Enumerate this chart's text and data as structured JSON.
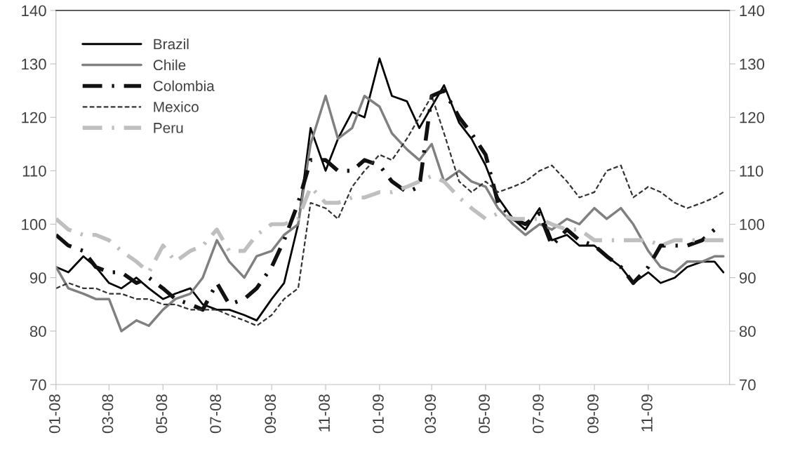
{
  "chart_data": {
    "type": "line",
    "x": [
      "2008-01-01",
      "2008-01-15",
      "2008-02-01",
      "2008-02-15",
      "2008-03-01",
      "2008-03-15",
      "2008-04-01",
      "2008-04-15",
      "2008-05-01",
      "2008-05-15",
      "2008-06-01",
      "2008-06-15",
      "2008-07-01",
      "2008-07-15",
      "2008-08-01",
      "2008-08-15",
      "2008-09-01",
      "2008-09-15",
      "2008-10-01",
      "2008-10-15",
      "2008-11-01",
      "2008-11-15",
      "2008-12-01",
      "2008-12-15",
      "2009-01-01",
      "2009-01-15",
      "2009-02-01",
      "2009-02-15",
      "2009-03-01",
      "2009-03-15",
      "2009-04-01",
      "2009-04-15",
      "2009-05-01",
      "2009-05-15",
      "2009-06-01",
      "2009-06-15",
      "2009-07-01",
      "2009-07-15",
      "2009-08-01",
      "2009-08-15",
      "2009-09-01",
      "2009-09-15",
      "2009-10-01",
      "2009-10-15",
      "2009-11-01",
      "2009-11-15",
      "2009-12-01",
      "2009-12-15",
      "2010-01-01",
      "2010-01-15",
      "2010-01-25"
    ],
    "series": [
      {
        "name": "Brazil",
        "color": "#000000",
        "line_style": "solid",
        "values": [
          92,
          91,
          94,
          92,
          89,
          88,
          90,
          88,
          86,
          87,
          88,
          85,
          84,
          84,
          83,
          82,
          86,
          89,
          100,
          118,
          110,
          116,
          121,
          120,
          131,
          124,
          123,
          118,
          122,
          126,
          119,
          116,
          111,
          105,
          101,
          99,
          103,
          97,
          98,
          96,
          96,
          94,
          92,
          89,
          91,
          89,
          90,
          92,
          93,
          93,
          91
        ]
      },
      {
        "name": "Chile",
        "color": "#808080",
        "line_style": "solid",
        "values": [
          92,
          88,
          87,
          86,
          86,
          80,
          82,
          81,
          84,
          86,
          87,
          90,
          97,
          93,
          90,
          94,
          95,
          98,
          100,
          115,
          124,
          116,
          118,
          124,
          122,
          117,
          114,
          112,
          115,
          108,
          110,
          108,
          107,
          103,
          100,
          98,
          100,
          99,
          101,
          100,
          103,
          101,
          103,
          100,
          95,
          92,
          91,
          93,
          93,
          94,
          94
        ]
      },
      {
        "name": "Colombia",
        "color": "#111111",
        "line_style": "dashdot",
        "values": [
          98,
          96,
          95,
          92,
          91,
          91,
          89,
          90,
          88,
          86,
          85,
          84,
          89,
          85,
          86,
          88,
          92,
          97,
          104,
          112,
          112,
          110,
          110,
          112,
          111,
          108,
          106,
          107,
          124,
          125,
          120,
          117,
          113,
          104,
          101,
          100,
          102,
          96,
          99,
          97,
          96,
          94,
          92,
          89,
          92,
          96,
          96,
          96,
          97,
          99,
          null
        ]
      },
      {
        "name": "Mexico",
        "color": "#333333",
        "line_style": "dashed",
        "values": [
          88,
          89,
          88,
          88,
          87,
          87,
          86,
          86,
          85,
          85,
          84,
          84,
          84,
          83,
          82,
          81,
          83,
          86,
          88,
          104,
          103,
          101,
          107,
          110,
          113,
          112,
          116,
          120,
          124,
          117,
          108,
          106,
          108,
          106,
          107,
          108,
          110,
          111,
          108,
          105,
          106,
          110,
          111,
          105,
          107,
          106,
          104,
          103,
          104,
          105,
          106
        ]
      },
      {
        "name": "Peru",
        "color": "#bfbfbf",
        "line_style": "dashdot",
        "values": [
          101,
          99,
          98,
          98,
          97,
          95,
          93,
          91,
          96,
          93,
          95,
          96,
          99,
          95,
          95,
          98,
          100,
          100,
          101,
          107,
          104,
          104,
          105,
          105,
          106,
          106,
          107,
          108,
          109,
          108,
          105,
          103,
          101,
          102,
          101,
          101,
          101,
          100,
          99,
          99,
          97,
          97,
          97,
          97,
          97,
          96,
          97,
          97,
          97,
          97,
          97
        ]
      }
    ],
    "xlim": [
      "2008-01-01",
      "2010-02-01"
    ],
    "xticks": [
      {
        "value": "2008-01-01",
        "label": "01-08"
      },
      {
        "value": "2008-03-01",
        "label": "03-08"
      },
      {
        "value": "2008-05-01",
        "label": "05-08"
      },
      {
        "value": "2008-07-01",
        "label": "07-08"
      },
      {
        "value": "2008-09-01",
        "label": "09-08"
      },
      {
        "value": "2008-11-01",
        "label": "11-08"
      },
      {
        "value": "2009-01-01",
        "label": "01-09"
      },
      {
        "value": "2009-03-01",
        "label": "03-09"
      },
      {
        "value": "2009-05-01",
        "label": "05-09"
      },
      {
        "value": "2009-07-01",
        "label": "07-09"
      },
      {
        "value": "2009-09-01",
        "label": "09-09"
      },
      {
        "value": "2009-11-01",
        "label": "11-09"
      }
    ],
    "ylim": [
      70,
      140
    ],
    "yticks": [
      70,
      80,
      90,
      100,
      110,
      120,
      130,
      140
    ],
    "y2lim": [
      70,
      140
    ],
    "y2ticks": [
      70,
      80,
      90,
      100,
      110,
      120,
      130,
      140
    ],
    "grid": false,
    "legend": "top left",
    "marker": "none"
  }
}
